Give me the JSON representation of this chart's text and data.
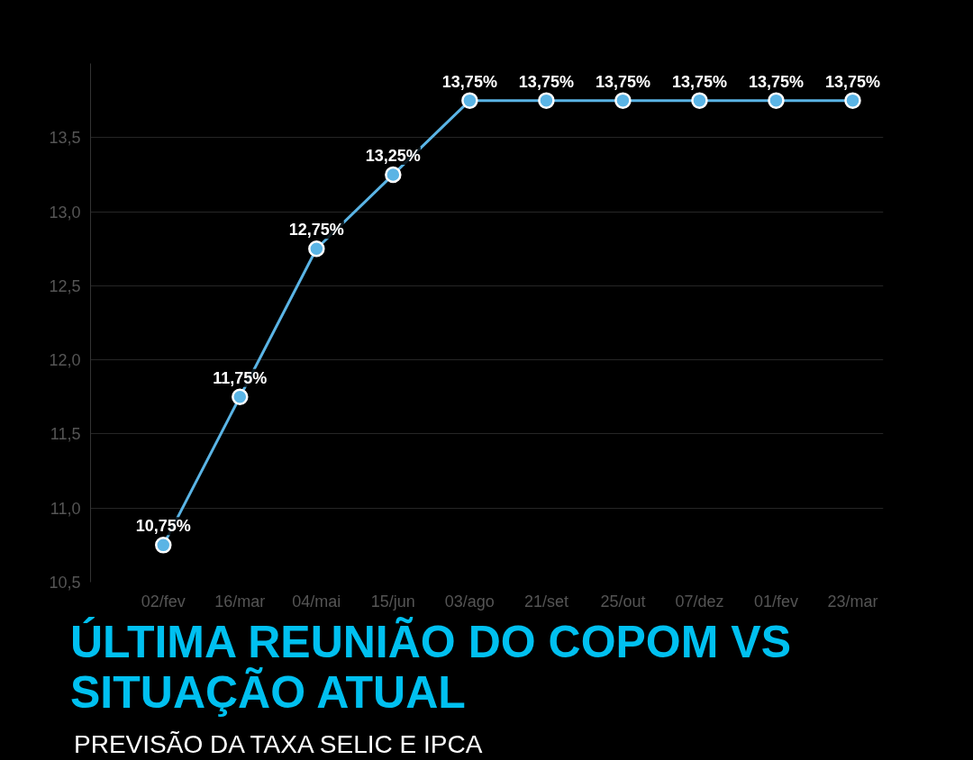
{
  "chart_data": {
    "type": "line",
    "title": "ÚLTIMA REUNIÃO DO COPOM VS SITUAÇÃO ATUAL",
    "subtitle": "PREVISÃO DA TAXA SELIC E IPCA",
    "categories": [
      "02/fev",
      "16/mar",
      "04/mai",
      "15/jun",
      "03/ago",
      "21/set",
      "25/out",
      "07/dez",
      "01/fev",
      "23/mar"
    ],
    "series": [
      {
        "color": "#5ab4e5",
        "values": [
          10.75,
          11.75,
          12.75,
          13.25,
          13.75,
          13.75,
          13.75,
          13.75,
          13.75,
          13.75
        ],
        "value_labels": [
          "10,75%",
          "11,75%",
          "12,75%",
          "13,25%",
          "13,75%",
          "13,75%",
          "13,75%",
          "13,75%",
          "13,75%",
          "13,75%"
        ]
      }
    ],
    "ylim": [
      10.5,
      14.0
    ],
    "yticks": [
      {
        "value": 10.5,
        "label": "10,5"
      },
      {
        "value": 11.0,
        "label": "11,0"
      },
      {
        "value": 11.5,
        "label": "11,5"
      },
      {
        "value": 12.0,
        "label": "12,0"
      },
      {
        "value": 12.5,
        "label": "12,5"
      },
      {
        "value": 13.0,
        "label": "13,0"
      },
      {
        "value": 13.5,
        "label": "13,5"
      }
    ],
    "grid": "y",
    "marker": "circle",
    "line_style": "solid"
  }
}
